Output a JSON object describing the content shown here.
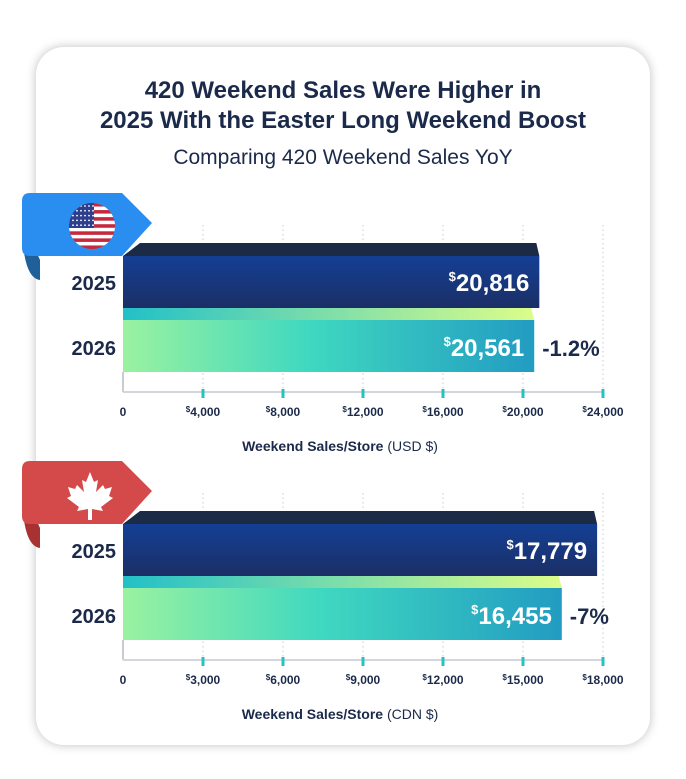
{
  "title_lines": [
    "420 Weekend Sales Were Higher in",
    "2025 With the Easter Long Weekend Boost"
  ],
  "subtitle": "Comparing 420 Weekend Sales YoY",
  "colors": {
    "text": "#1b2a4a",
    "bar_2025": "#143f94",
    "bar_2025_top": "#1b2a45",
    "bar_2026_start": "#9af2a0",
    "bar_2026_end": "#229cc2",
    "tick": "#1fc3c8",
    "us_ribbon": "#2a8ef0",
    "ca_ribbon": "#d44a4a"
  },
  "chart_data": [
    {
      "type": "bar",
      "orientation": "horizontal",
      "flag_icon": "us-flag-icon",
      "categories": [
        "2025",
        "2026"
      ],
      "values": [
        20816,
        20561
      ],
      "value_labels": [
        "20,816",
        "20,561"
      ],
      "change_label": "-1.2%",
      "xlim": [
        0,
        24000
      ],
      "ticks": [
        0,
        4000,
        8000,
        12000,
        16000,
        20000,
        24000
      ],
      "tick_labels": [
        "0",
        "4,000",
        "8,000",
        "12,000",
        "16,000",
        "20,000",
        "24,000"
      ],
      "currency_symbol": "$",
      "xlabel_bold": "Weekend Sales/Store",
      "xlabel_unit": "(USD $)",
      "grid": true
    },
    {
      "type": "bar",
      "orientation": "horizontal",
      "flag_icon": "canada-maple-leaf-icon",
      "categories": [
        "2025",
        "2026"
      ],
      "values": [
        17779,
        16455
      ],
      "value_labels": [
        "17,779",
        "16,455"
      ],
      "change_label": "-7%",
      "xlim": [
        0,
        18000
      ],
      "ticks": [
        0,
        3000,
        6000,
        9000,
        12000,
        15000,
        18000
      ],
      "tick_labels": [
        "0",
        "3,000",
        "6,000",
        "9,000",
        "12,000",
        "15,000",
        "18,000"
      ],
      "currency_symbol": "$",
      "xlabel_bold": "Weekend Sales/Store",
      "xlabel_unit": "(CDN $)",
      "grid": true
    }
  ]
}
